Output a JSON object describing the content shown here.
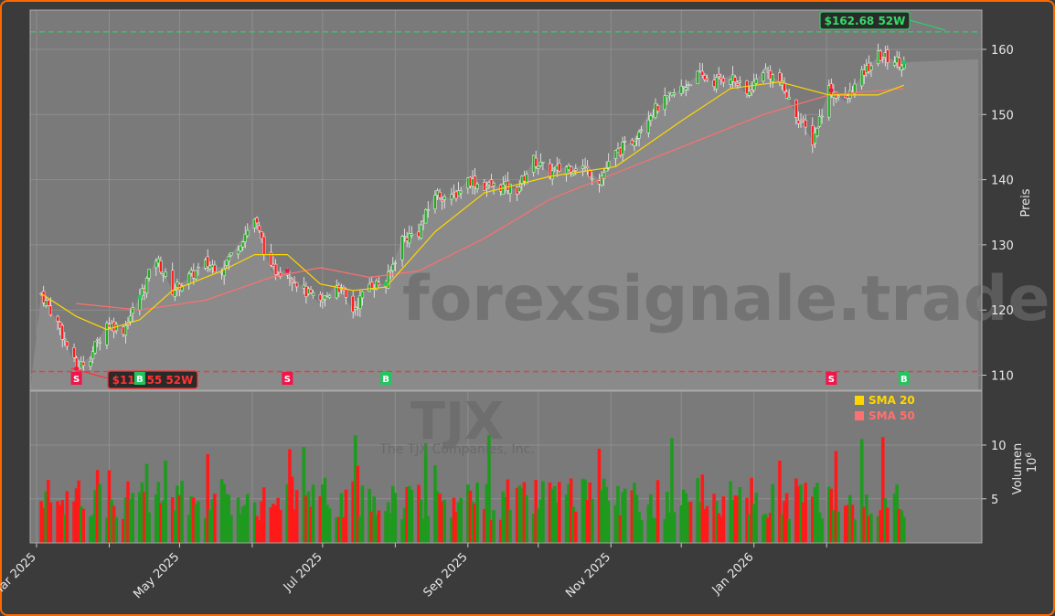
{
  "chart_data": {
    "type": "candlestick",
    "ticker": "TJX",
    "company": "The TJX Companies, Inc.",
    "watermark": "forexsignale.trade",
    "ylabel": "Preis",
    "volume_label": "Volumen",
    "volume_unit": "10^6",
    "ylim": [
      107,
      166
    ],
    "volume_ylim": [
      0,
      16
    ],
    "x_ticks": [
      "Mar 2025",
      "May 2025",
      "Jul 2025",
      "Sep 2025",
      "Nov 2025",
      "Jan 2026"
    ],
    "y_ticks": [
      110,
      120,
      130,
      140,
      150,
      160
    ],
    "volume_ticks": [
      5,
      10
    ],
    "high_52w": {
      "value": 162.68,
      "label": "$162.68 52W"
    },
    "low_52w": {
      "value": 110.55,
      "label": "$110.55 52W"
    },
    "legend": [
      {
        "name": "SMA 20",
        "color": "#ffd700"
      },
      {
        "name": "SMA 50",
        "color": "#ff7070"
      }
    ],
    "signals": [
      {
        "type": "S",
        "date": "2025-03-18"
      },
      {
        "type": "B",
        "date": "2025-04-14"
      },
      {
        "type": "S",
        "date": "2025-06-16"
      },
      {
        "type": "B",
        "date": "2025-07-28"
      },
      {
        "type": "S",
        "date": "2026-02-03"
      },
      {
        "type": "B",
        "date": "2026-03-06"
      }
    ],
    "colors": {
      "up": "#22aa22",
      "down": "#ff1a1a",
      "sma20": "#ffd700",
      "sma50": "#ff7070",
      "high": "#33cc66",
      "low": "#ff3333"
    },
    "price_path": [
      [
        "2025-03-03",
        122.5
      ],
      [
        "2025-03-10",
        118
      ],
      [
        "2025-03-18",
        111
      ],
      [
        "2025-03-24",
        113
      ],
      [
        "2025-03-31",
        118
      ],
      [
        "2025-04-07",
        117
      ],
      [
        "2025-04-14",
        122
      ],
      [
        "2025-04-21",
        128
      ],
      [
        "2025-04-28",
        123
      ],
      [
        "2025-05-05",
        125
      ],
      [
        "2025-05-12",
        127
      ],
      [
        "2025-05-19",
        126.5
      ],
      [
        "2025-05-26",
        130
      ],
      [
        "2025-06-02",
        134
      ],
      [
        "2025-06-09",
        126
      ],
      [
        "2025-06-16",
        126
      ],
      [
        "2025-06-23",
        123
      ],
      [
        "2025-06-30",
        121
      ],
      [
        "2025-07-07",
        124
      ],
      [
        "2025-07-14",
        120
      ],
      [
        "2025-07-21",
        124
      ],
      [
        "2025-07-28",
        124
      ],
      [
        "2025-08-04",
        131
      ],
      [
        "2025-08-11",
        132
      ],
      [
        "2025-08-18",
        138
      ],
      [
        "2025-08-25",
        137
      ],
      [
        "2025-09-01",
        140
      ],
      [
        "2025-09-08",
        139
      ],
      [
        "2025-09-15",
        139
      ],
      [
        "2025-09-22",
        138.5
      ],
      [
        "2025-09-29",
        143
      ],
      [
        "2025-10-06",
        141
      ],
      [
        "2025-10-13",
        142
      ],
      [
        "2025-10-20",
        142
      ],
      [
        "2025-10-27",
        140
      ],
      [
        "2025-11-03",
        144
      ],
      [
        "2025-11-10",
        146
      ],
      [
        "2025-11-17",
        150
      ],
      [
        "2025-11-24",
        152
      ],
      [
        "2025-12-01",
        154
      ],
      [
        "2025-12-08",
        156
      ],
      [
        "2025-12-15",
        155
      ],
      [
        "2025-12-22",
        156
      ],
      [
        "2025-12-29",
        153
      ],
      [
        "2026-01-05",
        157
      ],
      [
        "2026-01-12",
        155
      ],
      [
        "2026-01-19",
        150
      ],
      [
        "2026-01-26",
        146
      ],
      [
        "2026-02-02",
        154
      ],
      [
        "2026-02-09",
        152
      ],
      [
        "2026-02-16",
        156
      ],
      [
        "2026-02-23",
        159
      ],
      [
        "2026-03-06",
        158
      ]
    ],
    "sma20_path": [
      [
        "2025-03-03",
        122.5
      ],
      [
        "2025-03-18",
        119
      ],
      [
        "2025-03-31",
        117
      ],
      [
        "2025-04-14",
        118.5
      ],
      [
        "2025-04-28",
        123
      ],
      [
        "2025-05-19",
        126
      ],
      [
        "2025-06-02",
        128.5
      ],
      [
        "2025-06-16",
        128.5
      ],
      [
        "2025-06-30",
        124
      ],
      [
        "2025-07-14",
        123
      ],
      [
        "2025-07-28",
        123.5
      ],
      [
        "2025-08-18",
        132
      ],
      [
        "2025-09-08",
        138
      ],
      [
        "2025-10-06",
        140.5
      ],
      [
        "2025-11-03",
        142
      ],
      [
        "2025-12-01",
        149
      ],
      [
        "2025-12-22",
        154
      ],
      [
        "2026-01-12",
        155
      ],
      [
        "2026-02-02",
        153
      ],
      [
        "2026-02-23",
        153
      ],
      [
        "2026-03-06",
        154.5
      ]
    ],
    "sma50_path": [
      [
        "2025-03-18",
        121
      ],
      [
        "2025-04-14",
        120
      ],
      [
        "2025-05-12",
        121.5
      ],
      [
        "2025-06-09",
        125
      ],
      [
        "2025-06-30",
        126.5
      ],
      [
        "2025-07-21",
        125
      ],
      [
        "2025-08-11",
        126
      ],
      [
        "2025-09-08",
        131
      ],
      [
        "2025-10-06",
        137
      ],
      [
        "2025-11-03",
        141
      ],
      [
        "2025-12-01",
        145
      ],
      [
        "2026-01-05",
        150
      ],
      [
        "2026-02-02",
        153
      ],
      [
        "2026-03-06",
        154
      ]
    ]
  }
}
